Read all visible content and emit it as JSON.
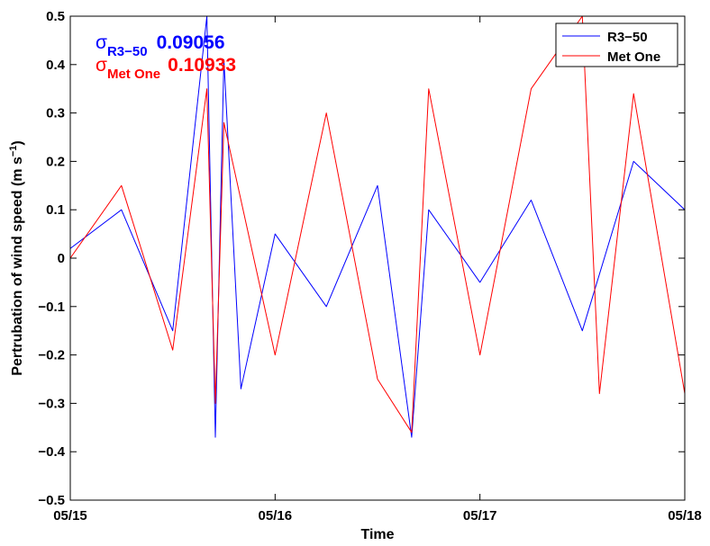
{
  "chart_data": {
    "type": "line",
    "title": "",
    "xlabel": "Time",
    "ylabel": "Pertrubation of wind speed (m s",
    "ylabel_exponent": "−1",
    "ylabel_close": ")",
    "xlim": [
      "05/15",
      "05/18"
    ],
    "ylim": [
      -0.5,
      0.5
    ],
    "x_ticks": [
      "05/15",
      "05/16",
      "05/17",
      "05/18"
    ],
    "y_ticks": [
      {
        "value": -0.5,
        "label": "−0.5"
      },
      {
        "value": -0.4,
        "label": "−0.4"
      },
      {
        "value": -0.3,
        "label": "−0.3"
      },
      {
        "value": -0.2,
        "label": "−0.2"
      },
      {
        "value": -0.1,
        "label": "−0.1"
      },
      {
        "value": 0,
        "label": "0"
      },
      {
        "value": 0.1,
        "label": "0.1"
      },
      {
        "value": 0.2,
        "label": "0.2"
      },
      {
        "value": 0.3,
        "label": "0.3"
      },
      {
        "value": 0.4,
        "label": "0.4"
      },
      {
        "value": 0.5,
        "label": "0.5"
      }
    ],
    "grid": false,
    "legend_position": "top-right",
    "annotations": [
      {
        "symbol": "σ",
        "subscript": "R3−50",
        "value": "0.09056",
        "color": "#0000ff"
      },
      {
        "symbol": "σ",
        "subscript": "Met One",
        "value": "0.10933",
        "color": "#ff0000"
      }
    ],
    "series": [
      {
        "name": "R3−50",
        "color": "#0000ff",
        "std": 0.09056,
        "x": [
          "05/15 00:00",
          "05/15 06:00",
          "05/15 12:00",
          "05/15 16:00",
          "05/15 17:00",
          "05/15 18:00",
          "05/15 20:00",
          "05/16 00:00",
          "05/16 06:00",
          "05/16 12:00",
          "05/16 16:00",
          "05/16 18:00",
          "05/17 00:00",
          "05/17 06:00",
          "05/17 12:00",
          "05/17 18:00",
          "05/18 00:00"
        ],
        "y": [
          0.02,
          0.1,
          -0.15,
          0.5,
          -0.37,
          0.41,
          -0.27,
          0.05,
          -0.1,
          0.15,
          -0.37,
          0.1,
          -0.05,
          0.12,
          -0.15,
          0.2,
          0.1
        ]
      },
      {
        "name": "Met One",
        "color": "#ff0000",
        "std": 0.10933,
        "x": [
          "05/15 00:00",
          "05/15 06:00",
          "05/15 12:00",
          "05/15 16:00",
          "05/15 17:00",
          "05/15 18:00",
          "05/16 00:00",
          "05/16 06:00",
          "05/16 12:00",
          "05/16 16:00",
          "05/16 18:00",
          "05/17 00:00",
          "05/17 06:00",
          "05/17 12:00",
          "05/17 14:00",
          "05/17 18:00",
          "05/18 00:00"
        ],
        "y": [
          0.0,
          0.15,
          -0.19,
          0.35,
          -0.3,
          0.28,
          -0.2,
          0.3,
          -0.25,
          -0.36,
          0.35,
          -0.2,
          0.35,
          0.5,
          -0.28,
          0.34,
          -0.28
        ]
      }
    ]
  }
}
